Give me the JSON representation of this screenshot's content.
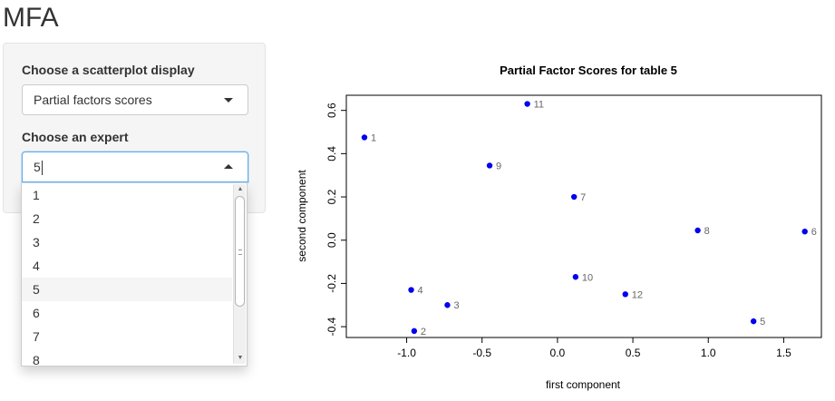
{
  "app": {
    "title": "MFA"
  },
  "sidebar": {
    "display_label": "Choose a scatterplot display",
    "display_value": "Partial factors scores",
    "expert_label": "Choose an expert",
    "expert_value": "5",
    "expert_options": [
      "1",
      "2",
      "3",
      "4",
      "5",
      "6",
      "7",
      "8"
    ],
    "selected_option": "5"
  },
  "chart_data": {
    "type": "scatter",
    "title": "Partial Factor Scores for table 5",
    "xlabel": "first component",
    "ylabel": "second component",
    "xlim": [
      -1.4,
      1.75
    ],
    "ylim": [
      -0.45,
      0.67
    ],
    "xticks": [
      -1.0,
      -0.5,
      0.0,
      0.5,
      1.0,
      1.5
    ],
    "xtick_labels": [
      "-1.0",
      "-0.5",
      "0.0",
      "0.5",
      "1.0",
      "1.5"
    ],
    "yticks": [
      -0.4,
      -0.2,
      0.0,
      0.2,
      0.4,
      0.6
    ],
    "ytick_labels": [
      "-0.4",
      "-0.2",
      "0.0",
      "0.2",
      "0.4",
      "0.6"
    ],
    "point_color": "#0000ee",
    "label_color": "#666666",
    "points": [
      {
        "label": "1",
        "x": -1.28,
        "y": 0.475
      },
      {
        "label": "2",
        "x": -0.95,
        "y": -0.42
      },
      {
        "label": "3",
        "x": -0.73,
        "y": -0.3
      },
      {
        "label": "4",
        "x": -0.97,
        "y": -0.23
      },
      {
        "label": "5",
        "x": 1.3,
        "y": -0.375
      },
      {
        "label": "6",
        "x": 1.64,
        "y": 0.04
      },
      {
        "label": "7",
        "x": 0.11,
        "y": 0.2
      },
      {
        "label": "8",
        "x": 0.93,
        "y": 0.045
      },
      {
        "label": "9",
        "x": -0.45,
        "y": 0.345
      },
      {
        "label": "10",
        "x": 0.12,
        "y": -0.17
      },
      {
        "label": "11",
        "x": -0.2,
        "y": 0.63
      },
      {
        "label": "12",
        "x": 0.45,
        "y": -0.25
      }
    ]
  }
}
